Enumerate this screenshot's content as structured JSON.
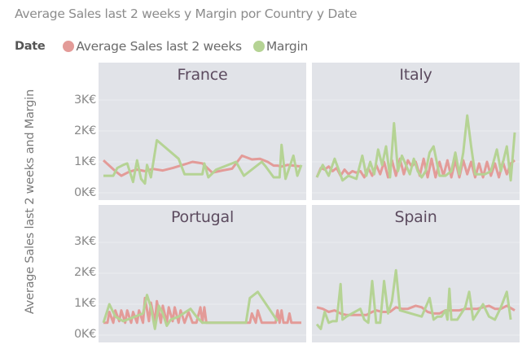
{
  "title": "Average Sales last 2 weeks y Margin por Country y Date",
  "legend": {
    "title": "Date",
    "items": [
      {
        "label": "Average Sales last 2 weeks",
        "color": "#e39b98"
      },
      {
        "label": "Margin",
        "color": "#b5d394"
      }
    ]
  },
  "y_axis_label": "Average Sales last 2 weeks and Margin",
  "y_ticks": [
    "3K€",
    "2K€",
    "1K€",
    "0K€"
  ],
  "colors": {
    "avg_sales": "#e39b98",
    "margin": "#b5d394",
    "panel_bg": "#e1e3e8",
    "gridline": "#ebedf0",
    "panel_label": "#5c4b5f"
  },
  "chart_data": {
    "type": "line",
    "title": "Average Sales last 2 weeks y Margin por Country y Date",
    "xlabel": "Date",
    "ylabel": "Average Sales last 2 weeks and Margin",
    "ylim": [
      0,
      3500
    ],
    "y_tick_labels": [
      "0K€",
      "1K€",
      "2K€",
      "3K€"
    ],
    "grid": true,
    "legend_position": "top-left",
    "facets": [
      "France",
      "Italy",
      "Portugal",
      "Spain"
    ],
    "panels": [
      {
        "country": "France",
        "series": [
          {
            "name": "Average Sales last 2 weeks",
            "x": [
              0,
              0.06,
              0.09,
              0.13,
              0.17,
              0.21,
              0.25,
              0.3,
              0.35,
              0.4,
              0.45,
              0.5,
              0.55,
              0.6,
              0.65,
              0.7,
              0.75,
              0.79,
              0.83,
              0.86,
              0.88,
              0.9,
              0.93,
              0.96,
              1
            ],
            "values": [
              1.05,
              0.7,
              0.55,
              0.68,
              0.75,
              0.7,
              0.77,
              0.72,
              0.8,
              0.9,
              1.0,
              0.95,
              0.65,
              0.72,
              0.78,
              1.2,
              1.08,
              1.1,
              1.0,
              0.88,
              0.88,
              0.85,
              0.9,
              0.88,
              0.85
            ]
          },
          {
            "name": "Margin",
            "x": [
              0,
              0.05,
              0.07,
              0.1,
              0.12,
              0.15,
              0.17,
              0.19,
              0.21,
              0.22,
              0.24,
              0.27,
              0.38,
              0.41,
              0.5,
              0.51,
              0.53,
              0.57,
              0.67,
              0.71,
              0.8,
              0.82,
              0.86,
              0.89,
              0.9,
              0.92,
              0.96,
              0.98,
              1
            ],
            "values": [
              0.55,
              0.55,
              0.8,
              0.9,
              0.95,
              0.35,
              1.05,
              0.45,
              0.3,
              0.9,
              0.5,
              1.7,
              1.1,
              0.6,
              0.6,
              0.95,
              0.5,
              0.75,
              1.0,
              0.55,
              1.0,
              0.85,
              0.5,
              0.5,
              1.55,
              0.45,
              1.2,
              0.55,
              0.9
            ]
          }
        ]
      },
      {
        "country": "Italy",
        "series": [
          {
            "name": "Average Sales last 2 weeks",
            "x": [
              0,
              0.02,
              0.04,
              0.06,
              0.08,
              0.1,
              0.12,
              0.14,
              0.16,
              0.18,
              0.2,
              0.22,
              0.24,
              0.26,
              0.28,
              0.3,
              0.32,
              0.34,
              0.36,
              0.38,
              0.4,
              0.42,
              0.44,
              0.46,
              0.48,
              0.5,
              0.52,
              0.54,
              0.56,
              0.58,
              0.6,
              0.62,
              0.64,
              0.66,
              0.68,
              0.7,
              0.72,
              0.74,
              0.76,
              0.78,
              0.8,
              0.82,
              0.84,
              0.86,
              0.88,
              0.9,
              0.92,
              0.94,
              0.96,
              0.98,
              1
            ],
            "values": [
              0.5,
              0.8,
              0.75,
              0.85,
              0.7,
              0.8,
              0.55,
              0.75,
              0.6,
              0.7,
              0.65,
              0.7,
              0.5,
              0.8,
              0.55,
              0.9,
              0.6,
              1.0,
              0.5,
              1.05,
              0.55,
              1.1,
              0.6,
              1.05,
              0.85,
              1.0,
              0.55,
              1.1,
              0.5,
              1.1,
              0.5,
              1.0,
              0.55,
              1.05,
              0.5,
              1.05,
              0.5,
              1.05,
              0.6,
              1.0,
              0.5,
              0.95,
              0.5,
              1.0,
              0.55,
              0.95,
              0.5,
              1.0,
              0.6,
              0.95,
              1.05
            ]
          },
          {
            "name": "Margin",
            "x": [
              0,
              0.03,
              0.06,
              0.09,
              0.13,
              0.16,
              0.2,
              0.23,
              0.25,
              0.27,
              0.29,
              0.31,
              0.33,
              0.35,
              0.37,
              0.39,
              0.41,
              0.43,
              0.45,
              0.47,
              0.49,
              0.51,
              0.53,
              0.55,
              0.57,
              0.59,
              0.62,
              0.65,
              0.68,
              0.7,
              0.72,
              0.74,
              0.76,
              0.78,
              0.8,
              0.82,
              0.85,
              0.88,
              0.91,
              0.93,
              0.96,
              0.98,
              1
            ],
            "values": [
              0.5,
              0.9,
              0.55,
              1.1,
              0.4,
              0.55,
              0.45,
              1.2,
              0.55,
              1.0,
              0.6,
              1.4,
              0.9,
              1.5,
              0.5,
              2.25,
              0.7,
              1.2,
              0.9,
              0.6,
              1.1,
              0.7,
              0.5,
              0.7,
              1.3,
              1.5,
              0.55,
              0.55,
              0.7,
              1.3,
              0.6,
              1.3,
              2.5,
              1.5,
              0.6,
              0.6,
              0.6,
              0.7,
              1.4,
              0.7,
              1.5,
              0.4,
              1.95
            ]
          }
        ]
      },
      {
        "country": "Portugal",
        "series": [
          {
            "name": "Average Sales last 2 weeks",
            "x": [
              0,
              0.02,
              0.03,
              0.05,
              0.06,
              0.08,
              0.09,
              0.11,
              0.12,
              0.14,
              0.15,
              0.17,
              0.18,
              0.2,
              0.21,
              0.23,
              0.24,
              0.26,
              0.27,
              0.29,
              0.3,
              0.32,
              0.33,
              0.35,
              0.36,
              0.38,
              0.39,
              0.41,
              0.43,
              0.45,
              0.47,
              0.49,
              0.5,
              0.51,
              0.52,
              0.54,
              0.72,
              0.74,
              0.75,
              0.77,
              0.78,
              0.8,
              0.87,
              0.88,
              0.89,
              0.9,
              0.91,
              0.92,
              0.93,
              0.94,
              0.95,
              0.96,
              1
            ],
            "values": [
              0.4,
              0.4,
              0.75,
              0.4,
              0.8,
              0.45,
              0.8,
              0.4,
              0.8,
              0.4,
              0.75,
              0.4,
              0.8,
              0.4,
              1.2,
              0.45,
              1.05,
              0.4,
              1.1,
              0.4,
              0.95,
              0.4,
              0.9,
              0.45,
              0.9,
              0.4,
              0.8,
              0.4,
              0.75,
              0.4,
              0.4,
              0.9,
              0.4,
              0.9,
              0.4,
              0.4,
              0.4,
              0.4,
              0.7,
              0.4,
              0.8,
              0.4,
              0.4,
              0.8,
              0.4,
              0.8,
              0.4,
              0.4,
              0.4,
              0.7,
              0.4,
              0.4,
              0.4
            ]
          },
          {
            "name": "Margin",
            "x": [
              0,
              0.03,
              0.06,
              0.1,
              0.14,
              0.2,
              0.22,
              0.24,
              0.26,
              0.28,
              0.3,
              0.32,
              0.34,
              0.38,
              0.44,
              0.47,
              0.5,
              0.52,
              0.72,
              0.74,
              0.78,
              0.88
            ],
            "values": [
              0.4,
              1.0,
              0.6,
              0.45,
              0.55,
              0.7,
              1.3,
              0.9,
              0.2,
              0.95,
              0.7,
              0.3,
              0.5,
              0.6,
              0.85,
              0.6,
              0.4,
              0.4,
              0.4,
              1.2,
              1.4,
              0.45
            ]
          }
        ]
      },
      {
        "country": "Spain",
        "series": [
          {
            "name": "Average Sales last 2 weeks",
            "x": [
              0,
              0.03,
              0.06,
              0.09,
              0.12,
              0.15,
              0.18,
              0.21,
              0.25,
              0.28,
              0.3,
              0.33,
              0.37,
              0.4,
              0.43,
              0.46,
              0.5,
              0.53,
              0.56,
              0.59,
              0.62,
              0.65,
              0.68,
              0.72,
              0.75,
              0.78,
              0.81,
              0.84,
              0.87,
              0.9,
              0.93,
              0.96,
              1
            ],
            "values": [
              0.9,
              0.85,
              0.75,
              0.8,
              0.7,
              0.65,
              0.65,
              0.65,
              0.65,
              0.75,
              0.8,
              0.75,
              0.75,
              0.9,
              0.85,
              0.85,
              0.95,
              0.9,
              0.75,
              0.7,
              0.7,
              0.8,
              0.8,
              0.8,
              0.85,
              0.85,
              0.85,
              0.9,
              0.95,
              0.85,
              0.85,
              0.95,
              0.8
            ]
          },
          {
            "name": "Margin",
            "x": [
              0,
              0.02,
              0.04,
              0.06,
              0.08,
              0.1,
              0.12,
              0.13,
              0.15,
              0.22,
              0.24,
              0.26,
              0.28,
              0.3,
              0.32,
              0.34,
              0.36,
              0.38,
              0.4,
              0.42,
              0.53,
              0.57,
              0.59,
              0.61,
              0.63,
              0.65,
              0.66,
              0.67,
              0.68,
              0.71,
              0.75,
              0.77,
              0.79,
              0.84,
              0.87,
              0.9,
              0.93,
              0.96,
              0.98
            ],
            "values": [
              0.35,
              0.2,
              0.75,
              0.4,
              0.45,
              0.45,
              1.65,
              0.5,
              0.6,
              0.85,
              0.5,
              0.4,
              1.75,
              0.4,
              0.4,
              1.75,
              0.7,
              1.1,
              2.1,
              0.8,
              0.6,
              1.2,
              0.5,
              0.6,
              0.6,
              0.8,
              0.5,
              1.5,
              0.5,
              0.5,
              0.9,
              1.4,
              0.5,
              1.0,
              0.6,
              0.5,
              0.9,
              1.4,
              0.5
            ]
          }
        ]
      }
    ]
  }
}
